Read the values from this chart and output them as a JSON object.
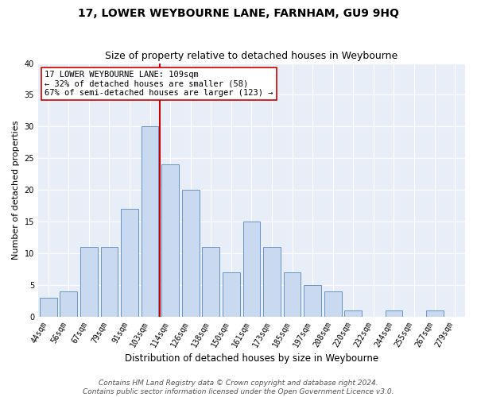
{
  "title": "17, LOWER WEYBOURNE LANE, FARNHAM, GU9 9HQ",
  "subtitle": "Size of property relative to detached houses in Weybourne",
  "xlabel": "Distribution of detached houses by size in Weybourne",
  "ylabel": "Number of detached properties",
  "categories": [
    "44sqm",
    "56sqm",
    "67sqm",
    "79sqm",
    "91sqm",
    "103sqm",
    "114sqm",
    "126sqm",
    "138sqm",
    "150sqm",
    "161sqm",
    "173sqm",
    "185sqm",
    "197sqm",
    "208sqm",
    "220sqm",
    "232sqm",
    "244sqm",
    "255sqm",
    "267sqm",
    "279sqm"
  ],
  "values": [
    3,
    4,
    11,
    11,
    17,
    30,
    24,
    20,
    11,
    7,
    15,
    11,
    7,
    5,
    4,
    1,
    0,
    1,
    0,
    1,
    0
  ],
  "bar_color": "#c9d9f0",
  "bar_edge_color": "#6693c8",
  "vline_x_index": 6,
  "vline_color": "#cc0000",
  "annotation_text": "17 LOWER WEYBOURNE LANE: 109sqm\n← 32% of detached houses are smaller (58)\n67% of semi-detached houses are larger (123) →",
  "annotation_box_color": "#ffffff",
  "annotation_box_edge": "#cc0000",
  "ylim": [
    0,
    40
  ],
  "yticks": [
    0,
    5,
    10,
    15,
    20,
    25,
    30,
    35,
    40
  ],
  "footer_line1": "Contains HM Land Registry data © Crown copyright and database right 2024.",
  "footer_line2": "Contains public sector information licensed under the Open Government Licence v3.0.",
  "plot_bg_color": "#e8eef8",
  "grid_color": "#ffffff",
  "title_fontsize": 10,
  "subtitle_fontsize": 9,
  "xlabel_fontsize": 8.5,
  "ylabel_fontsize": 8,
  "tick_fontsize": 7,
  "annotation_fontsize": 7.5,
  "footer_fontsize": 6.5
}
